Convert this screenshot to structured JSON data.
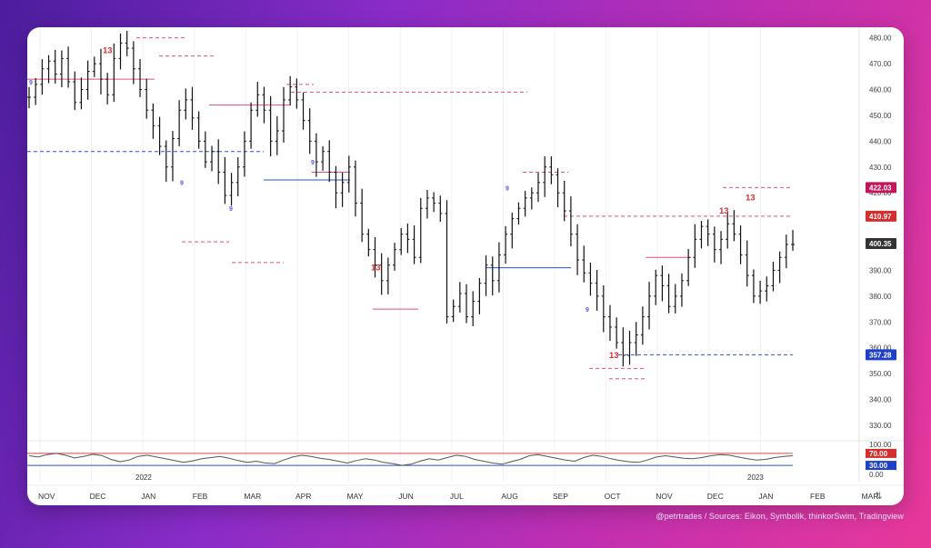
{
  "credit": "@petrtrades / Sources: Eikon, Symbolik, thinkorSwim, Tradingview",
  "chart_data": {
    "type": "ohlc",
    "price_axis": {
      "ticks": [
        "480.00",
        "470.00",
        "460.00",
        "450.00",
        "440.00",
        "430.00",
        "420.00",
        "410.00",
        "400.00",
        "390.00",
        "380.00",
        "370.00",
        "360.00",
        "350.00",
        "340.00",
        "330.00"
      ],
      "ylim": [
        324,
        482
      ]
    },
    "price_tags": [
      {
        "label": "422.03",
        "value": 422.03,
        "color": "#c2185b"
      },
      {
        "label": "410.97",
        "value": 410.97,
        "color": "#d32f2f"
      },
      {
        "label": "400.35",
        "value": 400.35,
        "color": "#333333"
      },
      {
        "label": "357.28",
        "value": 357.28,
        "color": "#1e40c8"
      }
    ],
    "oscillator": {
      "ticks": [
        "100.00",
        "0.00"
      ],
      "tags": [
        {
          "label": "70.00",
          "value": 70,
          "color": "#d32f2f"
        },
        {
          "label": "30.00",
          "value": 30,
          "color": "#1e40c8"
        }
      ],
      "ylim": [
        0,
        100
      ],
      "values": [
        62,
        58,
        66,
        70,
        64,
        55,
        60,
        67,
        63,
        50,
        42,
        48,
        60,
        64,
        58,
        52,
        46,
        40,
        45,
        52,
        56,
        60,
        54,
        46,
        40,
        44,
        38,
        36,
        48,
        58,
        64,
        60,
        54,
        50,
        44,
        38,
        46,
        52,
        48,
        40,
        36,
        30,
        34,
        44,
        52,
        48,
        56,
        64,
        60,
        50,
        44,
        38,
        34,
        42,
        50,
        62,
        66,
        60,
        54,
        48,
        44,
        56,
        64,
        60,
        52,
        46,
        42,
        40,
        48,
        58,
        62,
        58,
        54,
        52,
        56,
        62,
        66,
        64,
        58,
        52,
        48,
        50,
        56,
        60,
        62
      ]
    },
    "time_axis": {
      "months": [
        "NOV",
        "DEC",
        "JAN",
        "FEB",
        "MAR",
        "APR",
        "MAY",
        "JUN",
        "JUL",
        "AUG",
        "SEP",
        "OCT",
        "NOV",
        "DEC",
        "JAN",
        "FEB",
        "MAR"
      ],
      "years": [
        "2022",
        "2023"
      ]
    },
    "series_close": [
      457,
      462,
      468,
      471,
      466,
      472,
      463,
      455,
      460,
      467,
      470,
      464,
      458,
      472,
      478,
      476,
      468,
      460,
      452,
      446,
      438,
      430,
      441,
      452,
      456,
      449,
      440,
      432,
      436,
      428,
      419,
      424,
      430,
      440,
      452,
      458,
      452,
      440,
      444,
      456,
      461,
      456,
      448,
      440,
      432,
      436,
      428,
      420,
      424,
      430,
      416,
      404,
      398,
      392,
      386,
      392,
      398,
      404,
      402,
      395,
      414,
      418,
      416,
      412,
      372,
      376,
      381,
      372,
      378,
      385,
      392,
      386,
      396,
      404,
      410,
      414,
      418,
      420,
      424,
      430,
      427,
      420,
      413,
      404,
      394,
      389,
      385,
      380,
      372,
      368,
      362,
      357,
      362,
      365,
      372,
      380,
      388,
      384,
      376,
      380,
      386,
      395,
      402,
      407,
      404,
      398,
      402,
      408,
      404,
      396,
      388,
      380,
      382,
      384,
      390,
      395,
      400,
      400
    ],
    "annotations": [
      "13",
      "13",
      "13",
      "13",
      "13",
      "9",
      "9",
      "9",
      "9",
      "9",
      "9"
    ],
    "colors": {
      "bars": "#111111",
      "resistance": "#e0507a",
      "support": "#2a52d8",
      "dashed_red": "#e0507a",
      "dashed_blue": "#2a52d8"
    }
  }
}
